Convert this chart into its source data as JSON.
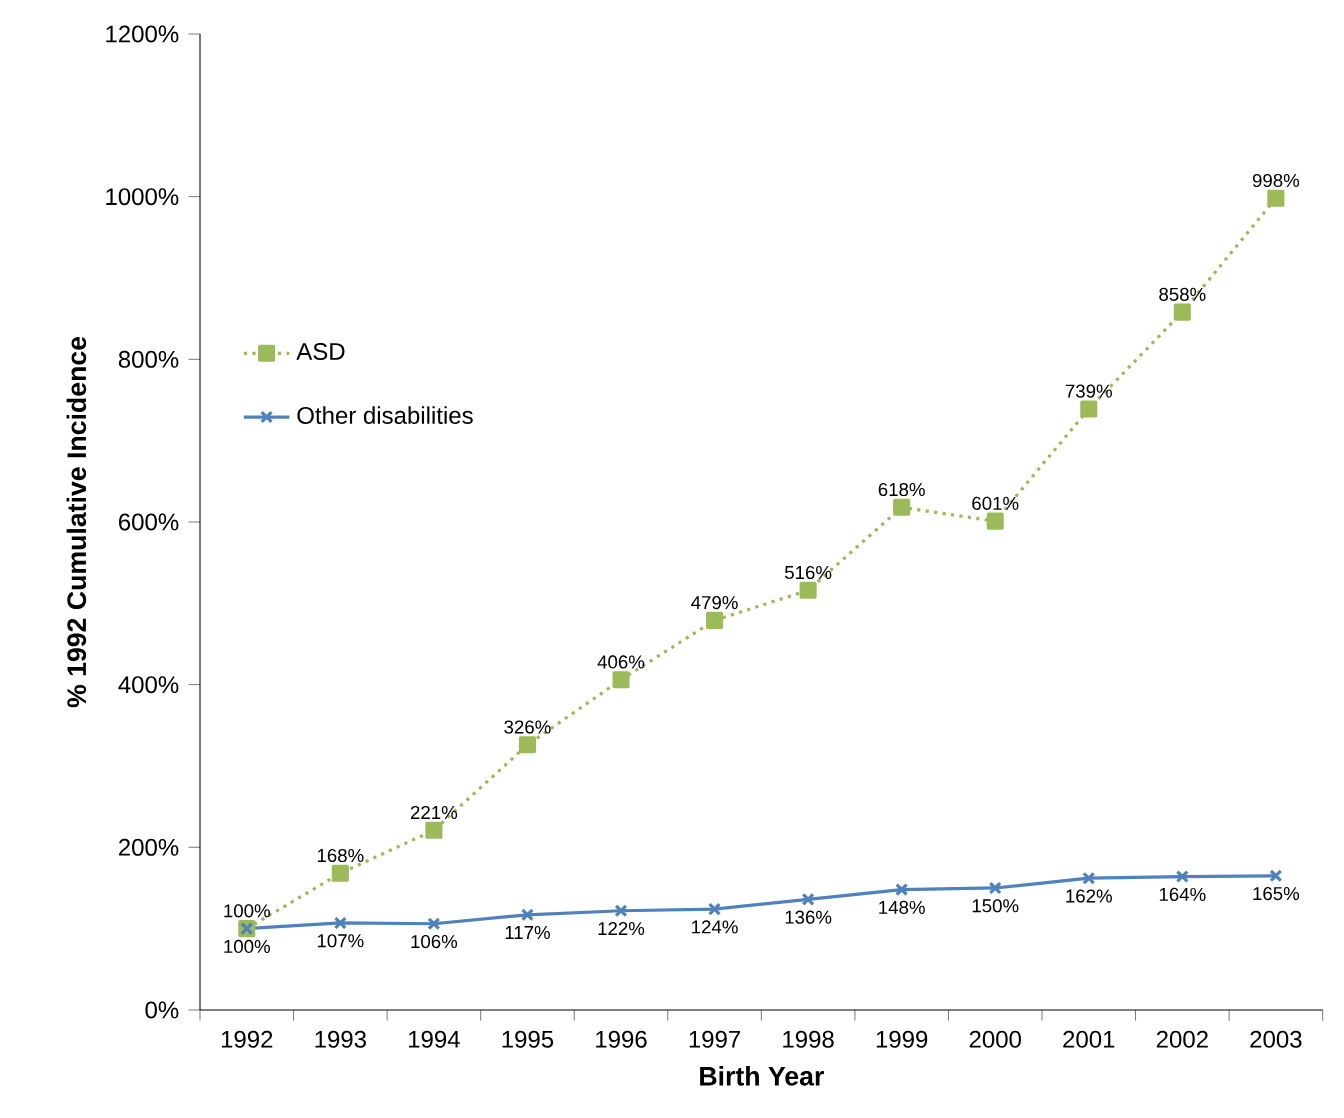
{
  "chart_data": {
    "type": "line",
    "xlabel": "Birth Year",
    "ylabel": "% 1992 Cumulative Incidence",
    "categories": [
      "1992",
      "1993",
      "1994",
      "1995",
      "1996",
      "1997",
      "1998",
      "1999",
      "2000",
      "2001",
      "2002",
      "2003"
    ],
    "series": [
      {
        "name": "ASD",
        "color": "#9bbb59",
        "marker": "square",
        "line_style": "dotted",
        "values": [
          100,
          168,
          221,
          326,
          406,
          479,
          516,
          618,
          601,
          739,
          858,
          998
        ],
        "value_labels": [
          "100%",
          "168%",
          "221%",
          "326%",
          "406%",
          "479%",
          "516%",
          "618%",
          "601%",
          "739%",
          "858%",
          "998%"
        ]
      },
      {
        "name": "Other disabilities",
        "color": "#4f81bd",
        "marker": "cross",
        "line_style": "solid",
        "values": [
          100,
          107,
          106,
          117,
          122,
          124,
          136,
          148,
          150,
          162,
          164,
          165
        ],
        "value_labels": [
          "100%",
          "107%",
          "106%",
          "117%",
          "122%",
          "124%",
          "136%",
          "148%",
          "150%",
          "162%",
          "164%",
          "165%"
        ]
      }
    ],
    "ylim": [
      0,
      1200
    ],
    "yticks": [
      {
        "value": 0,
        "label": "0%"
      },
      {
        "value": 200,
        "label": "200%"
      },
      {
        "value": 400,
        "label": "400%"
      },
      {
        "value": 600,
        "label": "600%"
      },
      {
        "value": 800,
        "label": "800%"
      },
      {
        "value": 1000,
        "label": "1000%"
      },
      {
        "value": 1200,
        "label": "1200%"
      }
    ],
    "grid": false,
    "legend": "left"
  }
}
